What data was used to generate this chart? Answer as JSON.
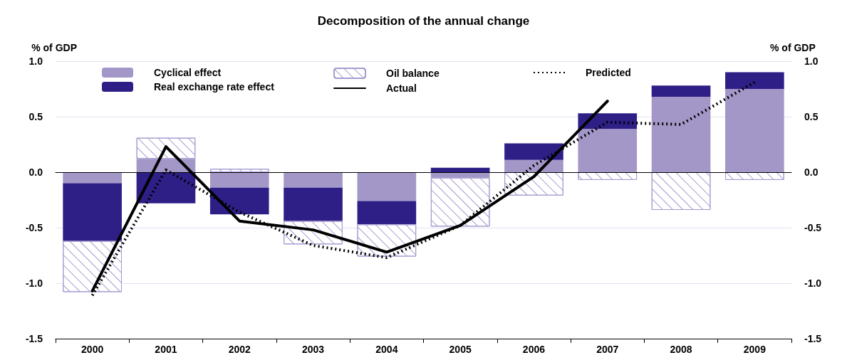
{
  "chart_data": {
    "type": "bar",
    "title": "Decomposition of the annual change",
    "ylabel": "% of GDP",
    "y2label": "% of GDP",
    "categories": [
      "2000",
      "2001",
      "2002",
      "2003",
      "2004",
      "2005",
      "2006",
      "2007",
      "2008",
      "2009"
    ],
    "stacked": true,
    "series": [
      {
        "name": "Cyclical effect",
        "color": "#a397c8",
        "values": [
          -0.1,
          0.12,
          -0.14,
          -0.14,
          -0.26,
          -0.05,
          0.11,
          0.39,
          0.68,
          0.75
        ]
      },
      {
        "name": "Real exchange rate effect",
        "color": "#2e1f87",
        "values": [
          -0.52,
          -0.28,
          -0.24,
          -0.3,
          -0.21,
          0.04,
          0.15,
          0.14,
          0.1,
          0.15
        ]
      },
      {
        "name": "Oil balance",
        "color": "#a79bd0",
        "values": [
          -0.46,
          0.19,
          0.03,
          -0.21,
          -0.29,
          -0.44,
          -0.21,
          -0.07,
          -0.34,
          -0.07
        ]
      },
      {
        "name": "Actual",
        "type": "line",
        "color": "#000000",
        "line_style": "solid",
        "values": [
          -1.07,
          0.23,
          -0.44,
          -0.52,
          -0.72,
          -0.48,
          -0.04,
          0.64,
          null,
          null
        ]
      },
      {
        "name": "Predicted",
        "type": "line",
        "color": "#000000",
        "line_style": "dotted",
        "values": [
          -1.11,
          0.02,
          -0.36,
          -0.66,
          -0.77,
          -0.48,
          0.06,
          0.45,
          0.43,
          0.81
        ]
      }
    ],
    "ylim": [
      -1.5,
      1.0
    ],
    "yticks": [
      -1.5,
      {
        "value": -1,
        "label": "-1.0"
      },
      -0.5,
      {
        "value": 0,
        "label": "0.0"
      },
      0.5,
      {
        "value": 1,
        "label": "1.0"
      }
    ],
    "y2lim": [
      -1.5,
      1.0
    ],
    "y2ticks": [
      -1.5,
      {
        "value": -1,
        "label": "-1.0"
      },
      -0.5,
      {
        "value": 0,
        "label": "0.0"
      },
      0.5,
      {
        "value": 1,
        "label": "1.0"
      }
    ],
    "grid": "y",
    "legend": "top",
    "marker": "none"
  }
}
